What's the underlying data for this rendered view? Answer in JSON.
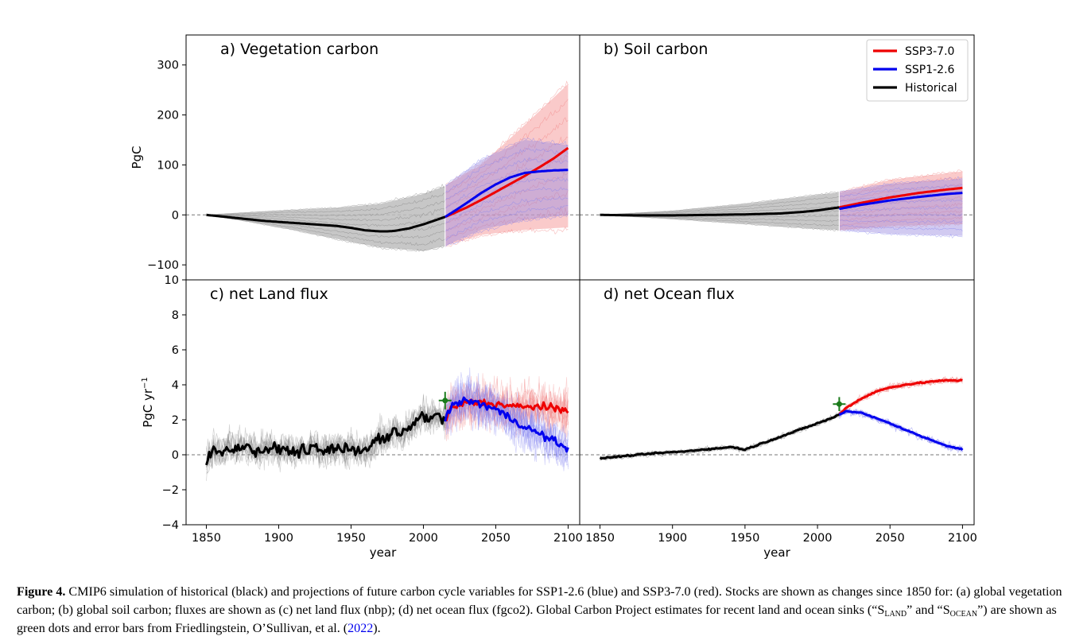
{
  "figure": {
    "panels": [
      {
        "id": "a",
        "label": "a) Vegetation carbon"
      },
      {
        "id": "b",
        "label": "b) Soil carbon"
      },
      {
        "id": "c",
        "label": "c) net Land flux"
      },
      {
        "id": "d",
        "label": "d) net Ocean flux"
      }
    ],
    "x_axis": {
      "label": "year",
      "ticks": [
        1850,
        1900,
        1950,
        2000,
        2050,
        2100
      ],
      "range": [
        1836,
        2108
      ]
    },
    "top_axis": {
      "label": "PgC",
      "ticks": [
        -100,
        0,
        100,
        200,
        300
      ],
      "range": [
        -130,
        360
      ]
    },
    "bottom_axis": {
      "label": "PgC yr",
      "label_superscript": "−1",
      "ticks": [
        -4,
        -2,
        0,
        2,
        4,
        6,
        8,
        10
      ],
      "range": [
        -4,
        10
      ]
    },
    "legend": {
      "placement": "top-right of panel b",
      "entries": [
        {
          "name": "SSP3-7.0",
          "color": "#ee0000"
        },
        {
          "name": "SSP1-2.6",
          "color": "#0000ee"
        },
        {
          "name": "Historical",
          "color": "#000000"
        }
      ]
    },
    "colors": {
      "historical": "#000000",
      "ssp370": "#ee0000",
      "ssp126": "#0000ee",
      "gcp": "#1a7a1a",
      "band_historical": "#bdbdbd",
      "band_ssp370": "#f7a6a6",
      "band_ssp126": "#9a8ae0"
    }
  },
  "chart_data": [
    {
      "panel": "a",
      "type": "line",
      "title": "a) Vegetation carbon",
      "xlabel": "",
      "ylabel": "PgC",
      "ylim": [
        -130,
        360
      ],
      "series": [
        {
          "name": "Historical",
          "x": [
            1850,
            1860,
            1870,
            1880,
            1890,
            1900,
            1910,
            1920,
            1930,
            1940,
            1950,
            1960,
            1970,
            1975,
            1980,
            1990,
            2000,
            2010,
            2015
          ],
          "y": [
            0,
            -3,
            -6,
            -9,
            -12,
            -14,
            -16,
            -18,
            -20,
            -22,
            -26,
            -31,
            -33,
            -33,
            -32,
            -27,
            -19,
            -9,
            -4
          ]
        },
        {
          "name": "SSP3-7.0",
          "x": [
            2015,
            2020,
            2030,
            2040,
            2050,
            2060,
            2070,
            2080,
            2090,
            2100
          ],
          "y": [
            -4,
            2,
            15,
            30,
            46,
            62,
            78,
            95,
            113,
            134
          ]
        },
        {
          "name": "SSP1-2.6",
          "x": [
            2015,
            2020,
            2030,
            2040,
            2050,
            2060,
            2070,
            2080,
            2090,
            2100
          ],
          "y": [
            -4,
            5,
            24,
            44,
            61,
            75,
            84,
            87,
            89,
            90
          ]
        }
      ],
      "bands": [
        {
          "series": "Historical",
          "x": [
            1850,
            1880,
            1910,
            1940,
            1970,
            2000,
            2015
          ],
          "lower": [
            0,
            -14,
            -30,
            -48,
            -65,
            -72,
            -62
          ],
          "upper": [
            0,
            5,
            10,
            14,
            22,
            42,
            58
          ]
        },
        {
          "series": "SSP3-7.0",
          "x": [
            2015,
            2040,
            2070,
            2100
          ],
          "lower": [
            -62,
            -40,
            -30,
            -25
          ],
          "upper": [
            58,
            100,
            180,
            262
          ]
        },
        {
          "series": "SSP1-2.6",
          "x": [
            2015,
            2040,
            2070,
            2100
          ],
          "lower": [
            -62,
            -30,
            -10,
            0
          ],
          "upper": [
            58,
            110,
            150,
            140
          ]
        }
      ]
    },
    {
      "panel": "b",
      "type": "line",
      "title": "b) Soil carbon",
      "xlabel": "",
      "ylabel": "",
      "ylim": [
        -130,
        360
      ],
      "series": [
        {
          "name": "Historical",
          "x": [
            1850,
            1875,
            1900,
            1925,
            1950,
            1975,
            1990,
            2000,
            2010,
            2015
          ],
          "y": [
            0,
            -1,
            -1,
            0,
            1,
            3,
            6,
            9,
            13,
            15
          ]
        },
        {
          "name": "SSP3-7.0",
          "x": [
            2015,
            2030,
            2050,
            2070,
            2090,
            2100
          ],
          "y": [
            15,
            24,
            35,
            44,
            51,
            54
          ]
        },
        {
          "name": "SSP1-2.6",
          "x": [
            2015,
            2030,
            2050,
            2070,
            2090,
            2100
          ],
          "y": [
            12,
            20,
            29,
            36,
            42,
            44
          ]
        }
      ],
      "bands": [
        {
          "series": "Historical",
          "x": [
            1850,
            1900,
            1950,
            2000,
            2015
          ],
          "lower": [
            0,
            -8,
            -18,
            -28,
            -30
          ],
          "upper": [
            0,
            8,
            22,
            40,
            45
          ]
        },
        {
          "series": "SSP3-7.0",
          "x": [
            2015,
            2050,
            2100
          ],
          "lower": [
            -30,
            -22,
            -18
          ],
          "upper": [
            45,
            70,
            87
          ]
        },
        {
          "series": "SSP1-2.6",
          "x": [
            2015,
            2050,
            2100
          ],
          "lower": [
            -30,
            -38,
            -42
          ],
          "upper": [
            45,
            62,
            72
          ]
        }
      ]
    },
    {
      "panel": "c",
      "type": "line",
      "title": "c) net Land flux",
      "xlabel": "year",
      "ylabel": "PgC yr−1",
      "ylim": [
        -4,
        10
      ],
      "series": [
        {
          "name": "Historical",
          "x": [
            1850,
            1855,
            1860,
            1865,
            1870,
            1875,
            1880,
            1885,
            1890,
            1895,
            1900,
            1905,
            1910,
            1915,
            1920,
            1925,
            1930,
            1935,
            1940,
            1945,
            1950,
            1955,
            1960,
            1965,
            1970,
            1975,
            1980,
            1985,
            1990,
            1995,
            2000,
            2005,
            2010,
            2015
          ],
          "y": [
            -0.4,
            0.3,
            0.1,
            0.5,
            0.2,
            0.6,
            0.4,
            0.1,
            0.3,
            0.4,
            0.2,
            0.4,
            0.1,
            0.3,
            0.2,
            0.5,
            0.1,
            0.3,
            0.5,
            0.2,
            0.4,
            0.3,
            0.3,
            0.6,
            1.0,
            0.8,
            1.4,
            1.1,
            1.6,
            1.9,
            2.3,
            2.0,
            2.3,
            1.9
          ]
        },
        {
          "name": "SSP3-7.0",
          "x": [
            2015,
            2020,
            2025,
            2030,
            2040,
            2050,
            2060,
            2070,
            2080,
            2090,
            2100
          ],
          "y": [
            2.0,
            2.7,
            2.8,
            3.0,
            3.0,
            2.9,
            2.8,
            2.7,
            2.8,
            2.6,
            2.6
          ]
        },
        {
          "name": "SSP1-2.6",
          "x": [
            2015,
            2020,
            2025,
            2030,
            2040,
            2050,
            2060,
            2070,
            2080,
            2090,
            2100
          ],
          "y": [
            2.1,
            2.8,
            3.0,
            3.1,
            2.9,
            2.6,
            2.1,
            1.6,
            1.2,
            0.8,
            0.3
          ]
        },
        {
          "name": "GCP estimate",
          "x": [
            2015
          ],
          "y": [
            3.1
          ],
          "error": 0.5
        }
      ]
    },
    {
      "panel": "d",
      "type": "line",
      "title": "d) net Ocean flux",
      "xlabel": "year",
      "ylabel": "",
      "ylim": [
        -4,
        10
      ],
      "series": [
        {
          "name": "Historical",
          "x": [
            1850,
            1870,
            1890,
            1900,
            1910,
            1920,
            1930,
            1940,
            1950,
            1960,
            1970,
            1980,
            1990,
            2000,
            2010,
            2015
          ],
          "y": [
            -0.2,
            -0.05,
            0.1,
            0.15,
            0.2,
            0.3,
            0.35,
            0.45,
            0.3,
            0.6,
            0.9,
            1.2,
            1.5,
            1.8,
            2.1,
            2.3
          ]
        },
        {
          "name": "SSP3-7.0",
          "x": [
            2015,
            2020,
            2030,
            2040,
            2050,
            2060,
            2070,
            2080,
            2090,
            2100
          ],
          "y": [
            2.3,
            2.7,
            3.2,
            3.6,
            3.85,
            4.0,
            4.1,
            4.2,
            4.25,
            4.25
          ]
        },
        {
          "name": "SSP1-2.6",
          "x": [
            2015,
            2020,
            2030,
            2040,
            2050,
            2060,
            2070,
            2080,
            2090,
            2100
          ],
          "y": [
            2.3,
            2.5,
            2.4,
            2.1,
            1.8,
            1.45,
            1.1,
            0.8,
            0.5,
            0.3
          ]
        },
        {
          "name": "GCP estimate",
          "x": [
            2015
          ],
          "y": [
            2.9
          ],
          "error": 0.4
        }
      ]
    }
  ],
  "caption": {
    "figure_label": "Figure 4.",
    "text_1": " CMIP6 simulation of historical (black) and projections of future carbon cycle variables for SSP1-2.6 (blue) and SSP3-7.0 (red). Stocks are shown as changes since 1850 for: (a) global vegetation carbon; (b) global soil carbon; fluxes are shown as (c) net land flux (nbp); (d) net ocean flux (fgco2). Global Carbon Project estimates for recent land and ocean sinks (“S",
    "sub_land": "LAND",
    "text_2": "” and “S",
    "sub_ocean": "OCEAN",
    "text_3": "”) are shown as green dots and error bars from Friedlingstein, O’Sullivan, et al. (",
    "citation_year": "2022",
    "text_4": ")."
  }
}
